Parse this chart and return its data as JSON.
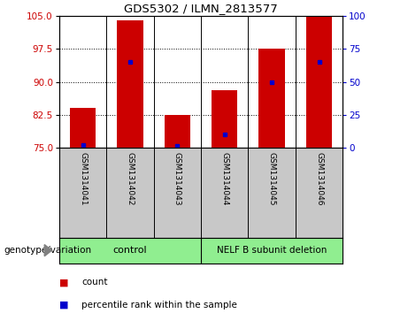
{
  "title": "GDS5302 / ILMN_2813577",
  "samples": [
    "GSM1314041",
    "GSM1314042",
    "GSM1314043",
    "GSM1314044",
    "GSM1314045",
    "GSM1314046"
  ],
  "counts": [
    84.0,
    104.0,
    82.5,
    88.0,
    97.5,
    105.0
  ],
  "percentile_ranks": [
    2.0,
    65.0,
    1.0,
    10.0,
    50.0,
    65.0
  ],
  "ymin": 75,
  "ymax": 105,
  "yticks_left": [
    75,
    82.5,
    90,
    97.5,
    105
  ],
  "yticks_right": [
    0,
    25,
    50,
    75,
    100
  ],
  "bar_color": "#CC0000",
  "dot_color": "#0000CC",
  "bar_width": 0.55,
  "group_label_1": "control",
  "group_label_2": "NELF B subunit deletion",
  "group1_indices": [
    0,
    1,
    2
  ],
  "group2_indices": [
    3,
    4,
    5
  ],
  "genotype_label": "genotype/variation",
  "legend_count_label": "count",
  "legend_percentile_label": "percentile rank within the sample",
  "tick_label_color_left": "#CC0000",
  "tick_label_color_right": "#0000CC",
  "plot_bg_color": "#FFFFFF",
  "label_area_color": "#C8C8C8",
  "group_area_color": "#90EE90",
  "grid_color": "#000000",
  "separator_color": "#000000"
}
